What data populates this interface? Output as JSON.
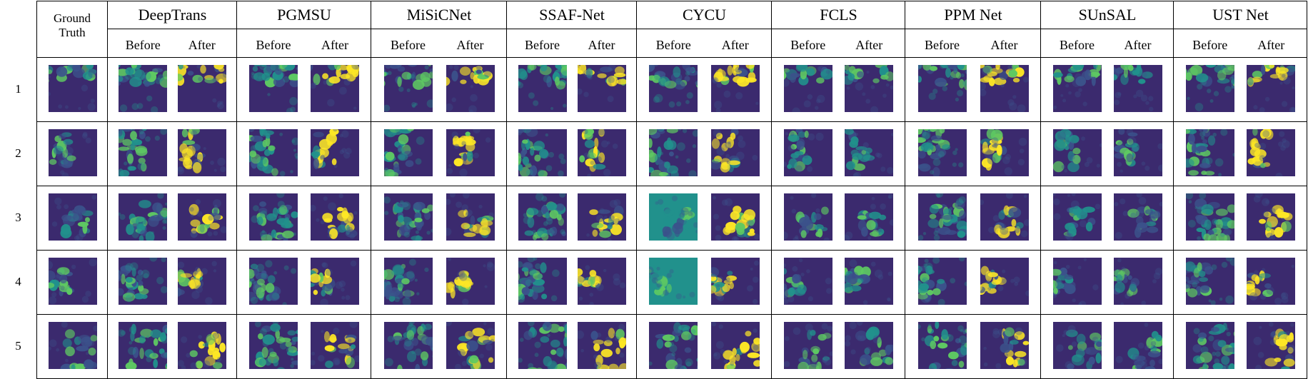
{
  "figure": {
    "ground_truth_label": "Ground Truth",
    "methods": [
      {
        "name": "DeepTrans"
      },
      {
        "name": "PGMSU"
      },
      {
        "name": "MiSiCNet"
      },
      {
        "name": "SSAF-Net"
      },
      {
        "name": "CYCU"
      },
      {
        "name": "FCLS"
      },
      {
        "name": "PPM Net"
      },
      {
        "name": "SUnSAL"
      },
      {
        "name": "UST Net"
      }
    ],
    "sub_labels": [
      "Before",
      "After"
    ],
    "rows": [
      "1",
      "2",
      "3",
      "4",
      "5"
    ]
  },
  "colormap": {
    "name": "viridis",
    "low": "#440154",
    "dark": "#3b2a6e",
    "mid_blue": "#3b528b",
    "teal": "#21918c",
    "green": "#5ec962",
    "yellow": "#fde725"
  }
}
